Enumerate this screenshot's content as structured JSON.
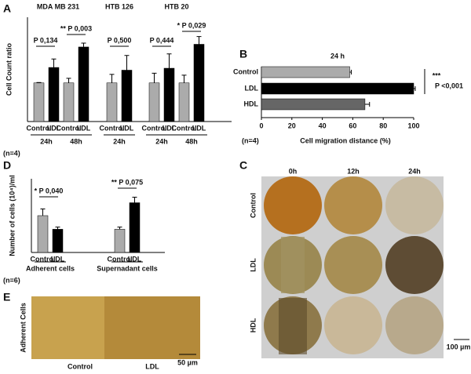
{
  "chart_data": [
    {
      "type": "bar",
      "panel": "A",
      "group_titles": [
        "MDA MB 231",
        "HTB 126",
        "HTB 20"
      ],
      "categories": [
        "24h",
        "48h",
        "24h",
        "24h",
        "48h"
      ],
      "ylabel": "Cell Count ratio",
      "note": "(n=4)",
      "ylim": [
        0,
        2.7
      ],
      "series": [
        {
          "name": "Control",
          "color": "#ababab",
          "values": [
            1.0,
            1.0,
            1.0,
            1.0,
            1.0
          ],
          "errors": [
            0.01,
            0.12,
            0.22,
            0.25,
            0.2
          ]
        },
        {
          "name": "LDL",
          "color": "#000000",
          "values": [
            1.4,
            1.93,
            1.33,
            1.38,
            2.0
          ],
          "errors": [
            0.22,
            0.1,
            0.38,
            0.37,
            0.2
          ]
        }
      ],
      "annotations": [
        "P 0,134",
        "** P 0,003",
        "P 0,500",
        "P 0,444",
        "* P 0,029"
      ]
    },
    {
      "type": "barh",
      "panel": "B",
      "title": "24 h",
      "categories": [
        "Control",
        "LDL",
        "HDL"
      ],
      "values": [
        58,
        100,
        68
      ],
      "errors": [
        1,
        1,
        3
      ],
      "colors": [
        "#ababab",
        "#000000",
        "#666666"
      ],
      "xlim": [
        0,
        100
      ],
      "xticks": [
        0,
        20,
        40,
        60,
        80,
        100
      ],
      "xlabel": "Cell migration distance (%)",
      "note": "(n=4)",
      "annotations": [
        "***",
        "P <0,001"
      ]
    },
    {
      "type": "bar",
      "panel": "D",
      "group_titles": [],
      "categories": [
        "Adherent cells",
        "Supernadant cells"
      ],
      "ylabel": "Number of cells (10⁴)/ml",
      "note": "(n=6)",
      "ylim": [
        0,
        20
      ],
      "series": [
        {
          "name": "Control",
          "color": "#ababab",
          "values": [
            10,
            6.3
          ],
          "errors": [
            1.8,
            0.6
          ]
        },
        {
          "name": "LDL",
          "color": "#000000",
          "values": [
            6.3,
            13.5
          ],
          "errors": [
            0.6,
            1.5
          ]
        }
      ],
      "annotations": [
        "* P 0,040",
        "** P 0,075"
      ]
    }
  ],
  "figure": {
    "panel_c": {
      "letter": "C",
      "columns": [
        "0h",
        "12h",
        "24h"
      ],
      "rows": [
        "Control",
        "LDL",
        "HDL"
      ],
      "scale": "100 µm"
    },
    "panel_e": {
      "letter": "E",
      "side": "Adherent Cells",
      "columns": [
        "Control",
        "LDL"
      ],
      "scale": "50 µm"
    }
  }
}
